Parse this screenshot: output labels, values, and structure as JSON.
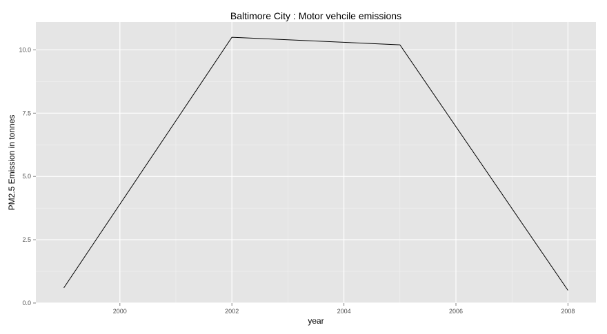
{
  "chart_data": {
    "type": "line",
    "title": "Baltimore City : Motor vehcile emissions",
    "xlabel": "year",
    "ylabel": "PM2.5 Emission in tonnes",
    "x": [
      1999,
      2002,
      2005,
      2008
    ],
    "series": [
      {
        "values": [
          0.6,
          10.5,
          10.2,
          0.5
        ]
      }
    ],
    "xlim": [
      1998.5,
      2008.5
    ],
    "ylim": [
      0,
      11.1
    ],
    "x_ticks": [
      2000,
      2002,
      2004,
      2006,
      2008
    ],
    "x_tick_labels": [
      "2000",
      "2002",
      "2004",
      "2006",
      "2008"
    ],
    "y_ticks": [
      0,
      2.5,
      5,
      7.5,
      10
    ],
    "y_tick_labels": [
      "0.0",
      "2.5",
      "5.0",
      "7.5",
      "10.0"
    ],
    "grid": true,
    "legend": "none",
    "colors": {
      "panel_background": "#e5e5e5",
      "grid_major": "#ffffff",
      "grid_minor": "#f2f2f2",
      "line": "#000000",
      "tick_label": "#4d4d4d",
      "axis_title": "#000000"
    }
  }
}
